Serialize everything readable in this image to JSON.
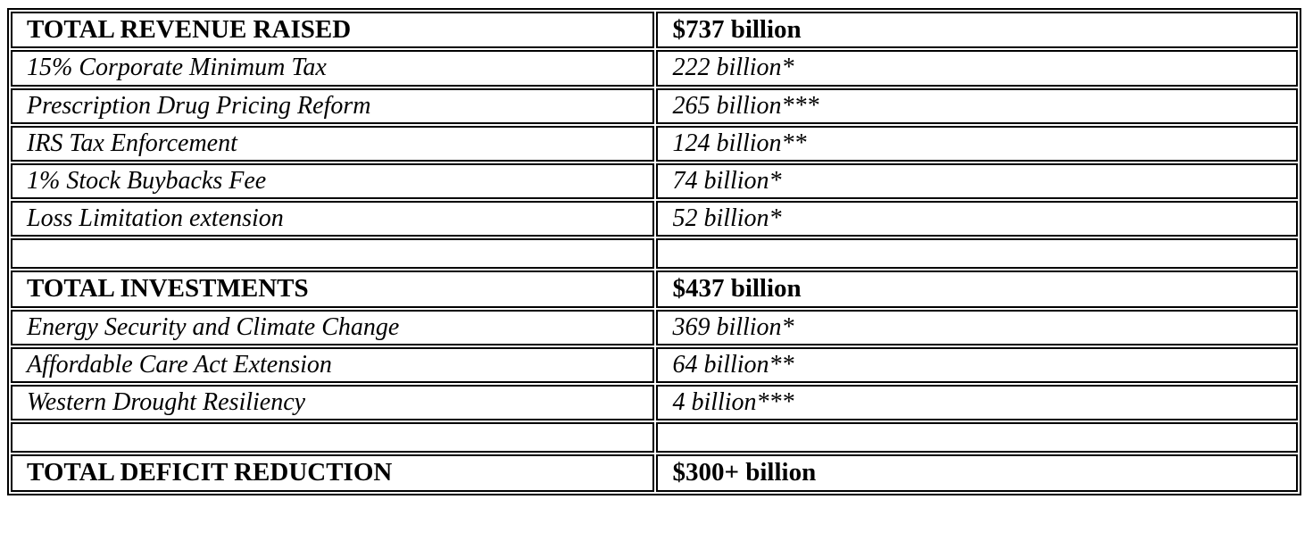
{
  "document": {
    "description_colors": {
      "border": "#000000",
      "text": "#000000",
      "background": "#ffffff"
    },
    "table": {
      "columns": [
        "item",
        "amount"
      ],
      "rows": [
        {
          "type": "header",
          "item": "TOTAL REVENUE RAISED",
          "amount": "$737 billion"
        },
        {
          "type": "item",
          "item": "15% Corporate Minimum Tax",
          "amount": "222 billion*"
        },
        {
          "type": "item",
          "item": "Prescription Drug Pricing Reform",
          "amount": "265 billion***"
        },
        {
          "type": "item",
          "item": "IRS Tax Enforcement",
          "amount": "124 billion**"
        },
        {
          "type": "item",
          "item": "1% Stock Buybacks Fee",
          "amount": "74 billion*"
        },
        {
          "type": "item",
          "item": "Loss Limitation extension",
          "amount": "52 billion*"
        },
        {
          "type": "spacer",
          "item": "",
          "amount": ""
        },
        {
          "type": "header",
          "item": "TOTAL INVESTMENTS",
          "amount": "$437 billion"
        },
        {
          "type": "item",
          "item": "Energy Security and Climate Change",
          "amount": "369 billion*"
        },
        {
          "type": "item",
          "item": "Affordable Care Act Extension",
          "amount": "64 billion**"
        },
        {
          "type": "item",
          "item": "Western Drought Resiliency",
          "amount": "4 billion***"
        },
        {
          "type": "spacer",
          "item": "",
          "amount": ""
        },
        {
          "type": "header",
          "item": "TOTAL DEFICIT REDUCTION",
          "amount": "$300+ billion"
        }
      ]
    }
  },
  "chart_data": {
    "type": "table",
    "title": "",
    "sections": [
      {
        "header": {
          "label": "TOTAL REVENUE RAISED",
          "value_text": "$737 billion",
          "value": 737
        },
        "items": [
          {
            "label": "15% Corporate Minimum Tax",
            "value_text": "222 billion*",
            "value": 222
          },
          {
            "label": "Prescription Drug Pricing Reform",
            "value_text": "265 billion***",
            "value": 265
          },
          {
            "label": "IRS Tax Enforcement",
            "value_text": "124 billion**",
            "value": 124
          },
          {
            "label": "1% Stock Buybacks Fee",
            "value_text": "74 billion*",
            "value": 74
          },
          {
            "label": "Loss Limitation extension",
            "value_text": "52 billion*",
            "value": 52
          }
        ]
      },
      {
        "header": {
          "label": "TOTAL INVESTMENTS",
          "value_text": "$437 billion",
          "value": 437
        },
        "items": [
          {
            "label": "Energy Security and Climate Change",
            "value_text": "369 billion*",
            "value": 369
          },
          {
            "label": "Affordable Care Act Extension",
            "value_text": "64 billion**",
            "value": 64
          },
          {
            "label": "Western Drought Resiliency",
            "value_text": "4 billion***",
            "value": 4
          }
        ]
      },
      {
        "header": {
          "label": "TOTAL DEFICIT REDUCTION",
          "value_text": "$300+ billion",
          "value": 300
        },
        "items": []
      }
    ]
  }
}
